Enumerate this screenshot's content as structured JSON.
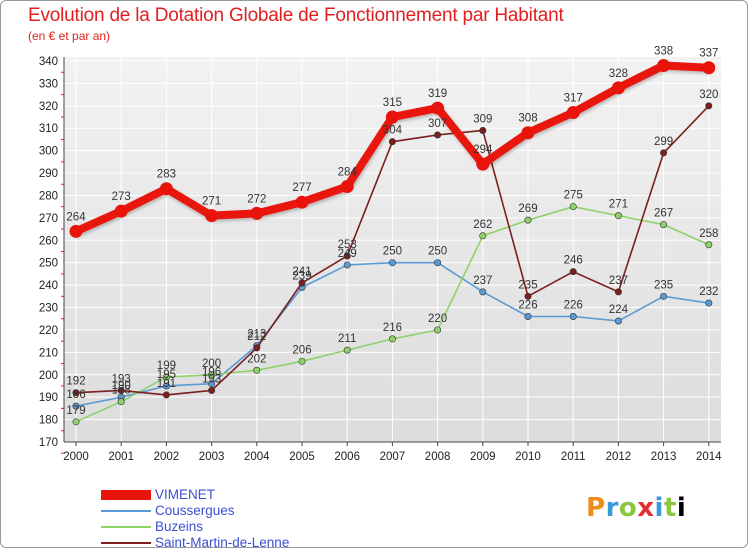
{
  "header": {
    "title": "Evolution de la Dotation Globale de Fonctionnement par Habitant",
    "subtitle": "(en € et par an)"
  },
  "logo": {
    "text": "Proxiti"
  },
  "chart_data": {
    "type": "line",
    "title": "Evolution de la Dotation Globale de Fonctionnement par Habitant",
    "subtitle": "(en € et par an)",
    "xlabel": "",
    "ylabel": "",
    "x": [
      "2000",
      "2001",
      "2002",
      "2003",
      "2004",
      "2005",
      "2006",
      "2007",
      "2008",
      "2009",
      "2010",
      "2011",
      "2012",
      "2013",
      "2014"
    ],
    "ylim": [
      170,
      340
    ],
    "yticks": [
      "170",
      "180",
      "190",
      "200",
      "210",
      "220",
      "230",
      "240",
      "250",
      "260",
      "270",
      "280",
      "290",
      "300",
      "310",
      "320",
      "330",
      "340"
    ],
    "legend_position": "bottom-left",
    "series": [
      {
        "name": "VIMENET",
        "color": "#e8140c",
        "values": [
          264,
          273,
          283,
          271,
          272,
          277,
          284,
          315,
          319,
          294,
          308,
          317,
          328,
          338,
          337
        ],
        "labels": [
          "264",
          "273",
          "283",
          "271",
          "272",
          "277",
          "284",
          "315",
          "319",
          "294",
          "308",
          "317",
          "328",
          "338",
          "337"
        ]
      },
      {
        "name": "Coussergues",
        "color": "#5b9bd5",
        "values": [
          186,
          190,
          195,
          196,
          213,
          239,
          249,
          250,
          250,
          237,
          226,
          226,
          224,
          235,
          232
        ],
        "labels": [
          "186",
          "190",
          "195",
          "196",
          "213",
          "239",
          "249",
          "250",
          "250",
          "237",
          "226",
          "226",
          "224",
          "235",
          "232"
        ]
      },
      {
        "name": "Buzeins",
        "color": "#8fd16a",
        "values": [
          179,
          188,
          199,
          200,
          202,
          206,
          211,
          216,
          220,
          262,
          269,
          275,
          271,
          267,
          258
        ],
        "labels": [
          "179",
          "188",
          "199",
          "200",
          "202",
          "206",
          "211",
          "216",
          "220",
          "262",
          "269",
          "275",
          "271",
          "267",
          "258"
        ]
      },
      {
        "name": "Saint-Martin-de-Lenne",
        "color": "#7b1f1f",
        "values": [
          192,
          193,
          191,
          193,
          212,
          241,
          253,
          304,
          307,
          309,
          235,
          246,
          237,
          299,
          320
        ],
        "labels": [
          "192",
          "193",
          "191",
          "193",
          "212",
          "241",
          "253",
          "304",
          "307",
          "309",
          "235",
          "246",
          "237",
          "299",
          "320"
        ]
      }
    ]
  }
}
